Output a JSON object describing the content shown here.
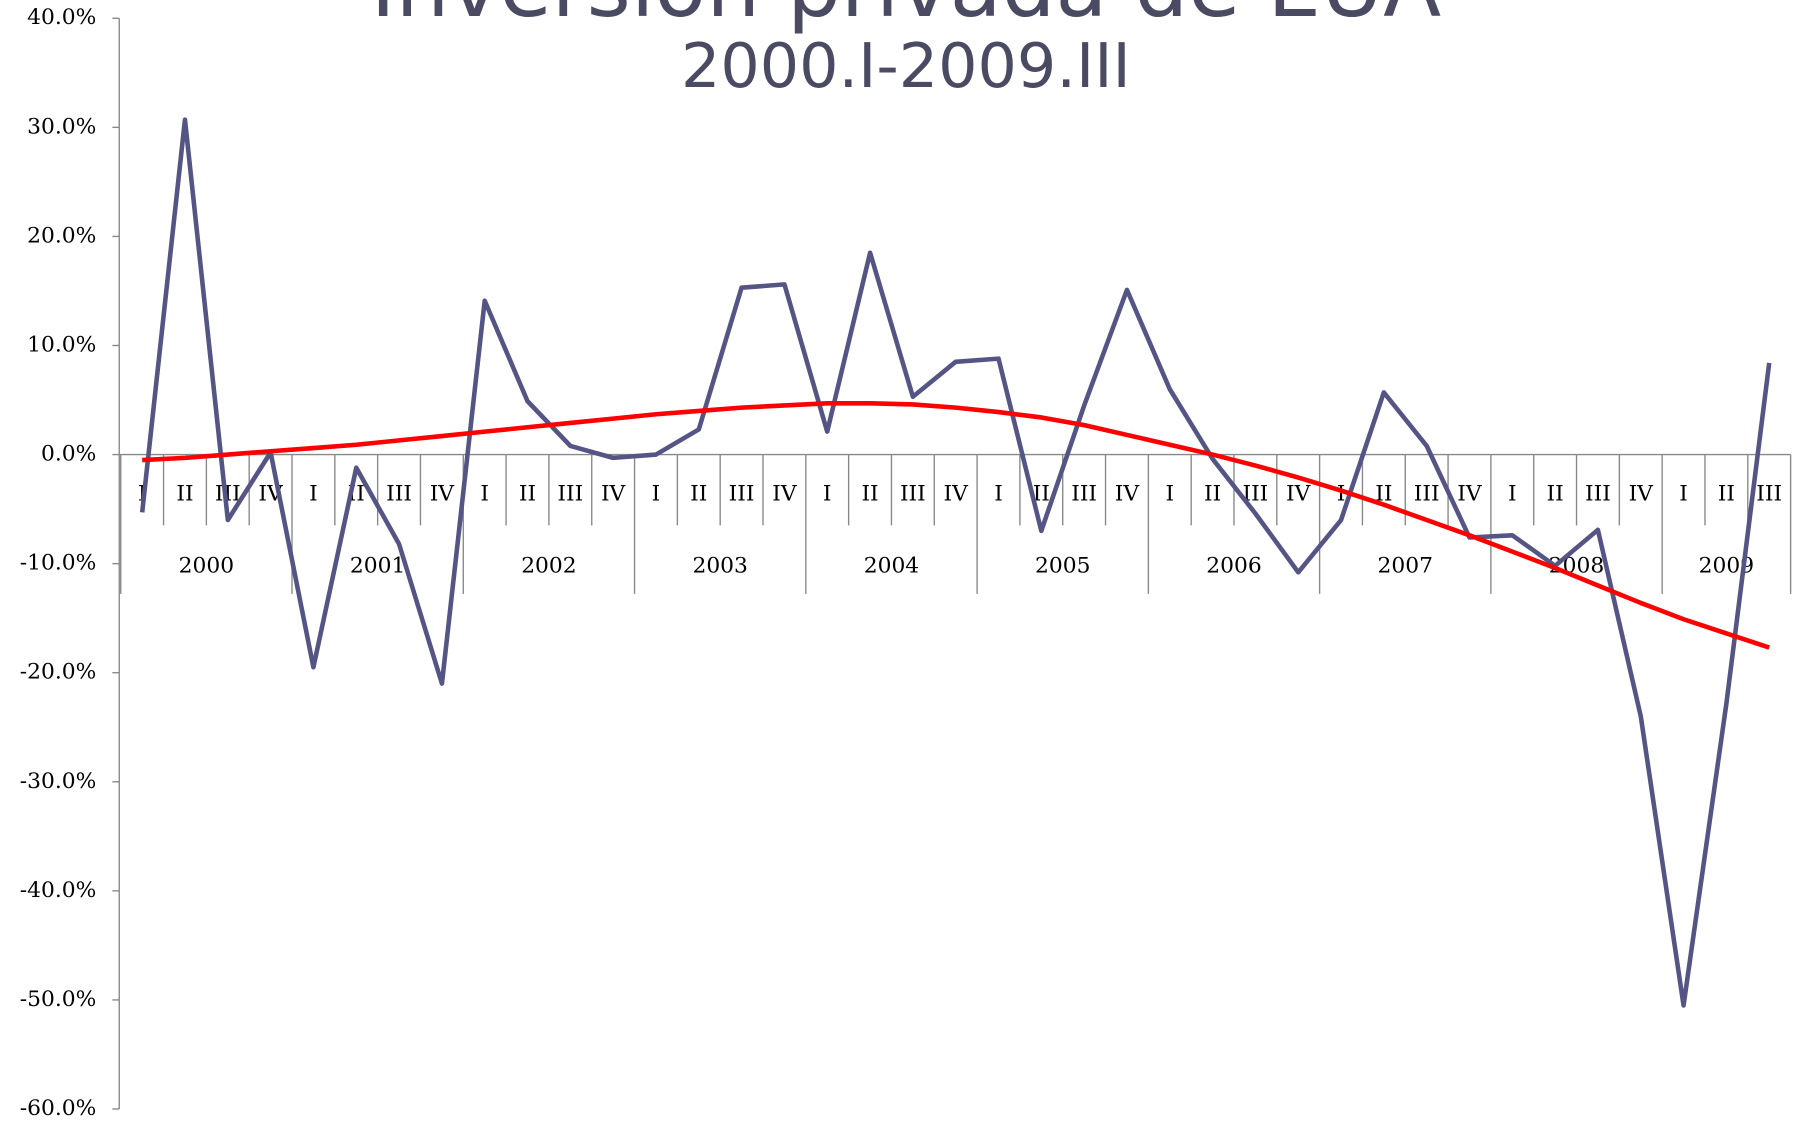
{
  "chart_data": {
    "type": "line",
    "title": "Inversión privada de EUA",
    "subtitle": "2000.I-2009.III",
    "categories": [
      "I",
      "II",
      "III",
      "IV",
      "I",
      "II",
      "III",
      "IV",
      "I",
      "II",
      "III",
      "IV",
      "I",
      "II",
      "III",
      "IV",
      "I",
      "II",
      "III",
      "IV",
      "I",
      "II",
      "III",
      "IV",
      "I",
      "II",
      "III",
      "IV",
      "I",
      "II",
      "III",
      "IV",
      "I",
      "II",
      "III",
      "IV",
      "I",
      "II",
      "III"
    ],
    "years": [
      "2000",
      "2001",
      "2002",
      "2003",
      "2004",
      "2005",
      "2006",
      "2007",
      "2008",
      "2009"
    ],
    "series": [
      {
        "color": "#555585",
        "values": [
          -5.3,
          30.7,
          -6.0,
          0.2,
          -19.5,
          -1.2,
          -8.2,
          -21.0,
          14.1,
          4.9,
          0.8,
          -0.3,
          0.0,
          2.3,
          15.3,
          15.6,
          2.1,
          18.5,
          5.3,
          8.5,
          8.8,
          -7.0,
          4.5,
          15.1,
          6.0,
          -0.4,
          -5.4,
          -10.8,
          -6.0,
          5.7,
          0.8,
          -7.6,
          -7.4,
          -10.2,
          -6.9,
          -24.0,
          -50.5,
          -22.8,
          8.4
        ]
      },
      {
        "color": "#ff0000",
        "values": [
          -0.5,
          -0.3,
          0.0,
          0.3,
          0.6,
          0.9,
          1.3,
          1.7,
          2.1,
          2.5,
          2.9,
          3.3,
          3.7,
          4.0,
          4.3,
          4.5,
          4.7,
          4.7,
          4.6,
          4.3,
          3.9,
          3.4,
          2.7,
          1.8,
          0.9,
          0.0,
          -1.0,
          -2.1,
          -3.3,
          -4.6,
          -6.0,
          -7.4,
          -8.9,
          -10.4,
          -12.0,
          -13.6,
          -15.1,
          -16.4,
          -17.7
        ]
      }
    ],
    "ylim": [
      -60,
      40
    ],
    "yticks": [
      {
        "value": -60,
        "label": "-60.0%"
      },
      {
        "value": -50,
        "label": "-50.0%"
      },
      {
        "value": -40,
        "label": "-40.0%"
      },
      {
        "value": -30,
        "label": "-30.0%"
      },
      {
        "value": -20,
        "label": "-20.0%"
      },
      {
        "value": -10,
        "label": "-10.0%"
      },
      {
        "value": 0,
        "label": "0.0%"
      },
      {
        "value": 10,
        "label": "10.0%"
      },
      {
        "value": 20,
        "label": "20.0%"
      },
      {
        "value": 30,
        "label": "30.0%"
      },
      {
        "value": 40,
        "label": "40.0%"
      }
    ],
    "grid": false
  }
}
